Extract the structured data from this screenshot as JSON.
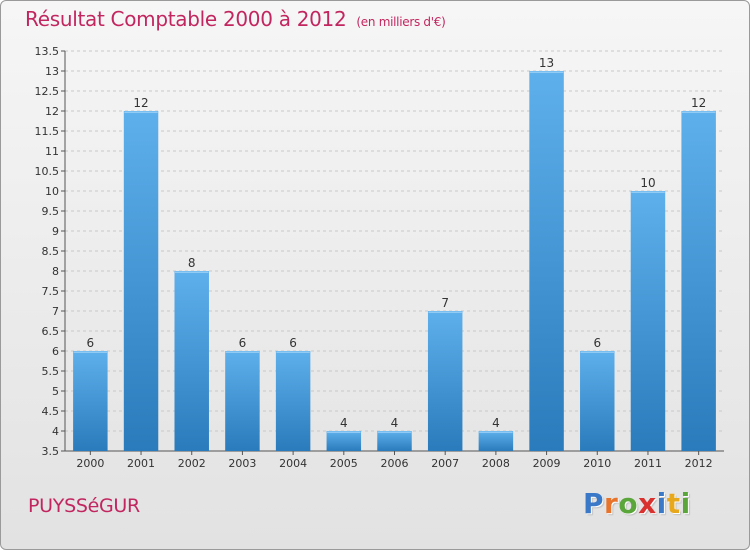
{
  "header": {
    "title": "Résultat Comptable 2000 à 2012",
    "unit": "(en milliers d'€)"
  },
  "footer": {
    "commune": "PUYSSéGUR",
    "brand": "Proxiti",
    "brand_letters": [
      {
        "char": "P",
        "color": "#3a78c8"
      },
      {
        "char": "r",
        "color": "#e8732a"
      },
      {
        "char": "o",
        "color": "#5aa63b"
      },
      {
        "char": "x",
        "color": "#d8312e"
      },
      {
        "char": "i",
        "color": "#3a78c8"
      },
      {
        "char": "t",
        "color": "#e8a81e"
      },
      {
        "char": "i",
        "color": "#5aa63b"
      }
    ]
  },
  "chart_data": {
    "type": "bar",
    "title": "Résultat Comptable 2000 à 2012",
    "subtitle": "(en milliers d'€)",
    "xlabel": "",
    "ylabel": "",
    "categories": [
      "2000",
      "2001",
      "2002",
      "2003",
      "2004",
      "2005",
      "2006",
      "2007",
      "2008",
      "2009",
      "2010",
      "2011",
      "2012"
    ],
    "values": [
      6,
      12,
      8,
      6,
      6,
      4,
      4,
      7,
      4,
      13,
      6,
      10,
      12
    ],
    "data_labels": [
      "6",
      "12",
      "8",
      "6",
      "6",
      "4",
      "4",
      "7",
      "4",
      "13",
      "6",
      "10",
      "12"
    ],
    "ylim": [
      3.5,
      13.5
    ],
    "yticks": [
      "3.5",
      "4",
      "4.5",
      "5",
      "5.5",
      "6",
      "6.5",
      "7",
      "7.5",
      "8",
      "8.5",
      "9",
      "9.5",
      "10",
      "10.5",
      "11",
      "11.5",
      "12",
      "12.5",
      "13",
      "13.5"
    ],
    "grid": true,
    "legend": "none",
    "colors": {
      "bar_light": "#5eb0ec",
      "bar_dark": "#2a7bbb",
      "grid": "#c8c8c8",
      "axis": "#555555",
      "text": "#333333"
    }
  }
}
